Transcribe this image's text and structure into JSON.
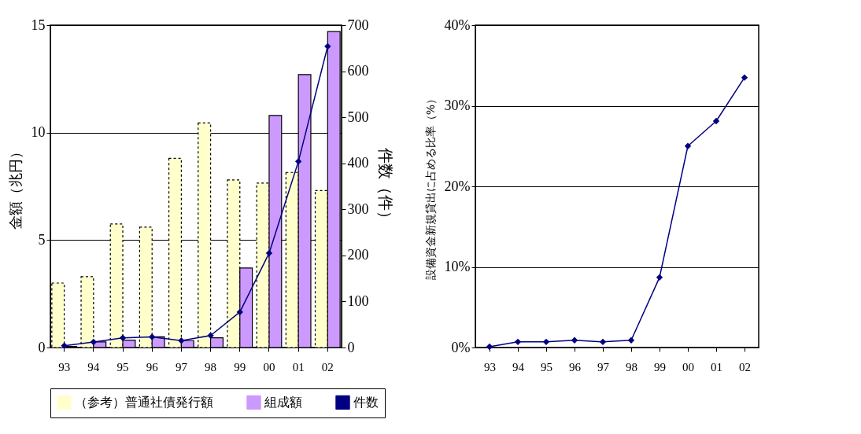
{
  "chart_data": [
    {
      "type": "bar",
      "ylabel": "金額（兆円）",
      "y2label": "件数（件）",
      "categories": [
        "93",
        "94",
        "95",
        "96",
        "97",
        "98",
        "99",
        "00",
        "01",
        "02"
      ],
      "series": [
        {
          "name": "（参考）普通社債発行額",
          "color": "#ffffcc",
          "values": [
            3.0,
            3.3,
            5.75,
            5.6,
            8.8,
            10.45,
            7.8,
            7.65,
            8.15,
            7.3
          ]
        },
        {
          "name": "組成額",
          "color": "#cc99ff",
          "values": [
            0.05,
            0.26,
            0.34,
            0.5,
            0.32,
            0.45,
            3.7,
            10.8,
            12.7,
            14.7
          ]
        },
        {
          "name": "件数",
          "type": "line",
          "axis": "y2",
          "color": "#000080",
          "values": [
            4,
            12,
            21,
            23,
            15,
            26,
            77,
            205,
            404,
            654
          ]
        }
      ],
      "ylim": [
        0,
        15
      ],
      "yticks": [
        0,
        5,
        10,
        15
      ],
      "y2lim": [
        0,
        700
      ],
      "y2ticks": [
        0,
        100,
        200,
        300,
        400,
        500,
        600,
        700
      ],
      "grid": "y",
      "legend": "bottom",
      "marker": "diamond"
    },
    {
      "type": "line",
      "ylabel": "設備資金新規貸出に占める比率（%）",
      "categories": [
        "93",
        "94",
        "95",
        "96",
        "97",
        "98",
        "99",
        "00",
        "01",
        "02"
      ],
      "series": [
        {
          "color": "#000080",
          "values": [
            0.1,
            0.7,
            0.7,
            0.9,
            0.7,
            0.9,
            8.7,
            25.0,
            28.1,
            33.5
          ]
        }
      ],
      "ylim": [
        0,
        40
      ],
      "yticks": [
        {
          "value": 0,
          "label": "0%"
        },
        {
          "value": 10,
          "label": "10%"
        },
        {
          "value": 20,
          "label": "20%"
        },
        {
          "value": 30,
          "label": "30%"
        },
        {
          "value": 40,
          "label": "40%"
        }
      ],
      "grid": "y",
      "marker": "diamond"
    }
  ]
}
